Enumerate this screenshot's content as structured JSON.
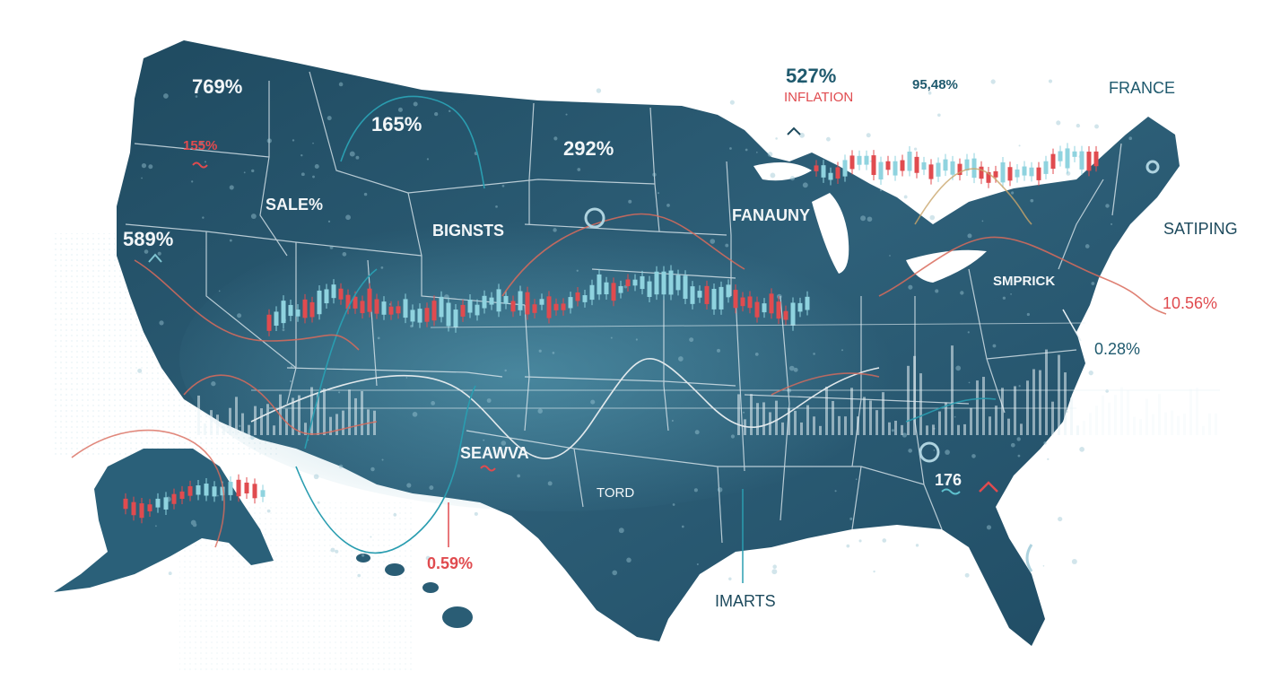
{
  "colors": {
    "map_fill": "#2c5b74",
    "map_fill_dark": "#1c4257",
    "border": "#dce8ee",
    "candle_up": "#8fd3df",
    "candle_down": "#e04b4f",
    "accent_red": "#e04b4f",
    "accent_teal": "#2a9db0"
  },
  "labels": {
    "oregon_pct": "769%",
    "montana_pct": "165%",
    "dakota_pct": "292%",
    "inflation_pct": "527%",
    "inflation": "INFLATION",
    "top_pct": "95,48%",
    "france": "FRANCE",
    "oregon_red_pct": "155%",
    "idaho_label": "SALE%",
    "california_pct": "589%",
    "bignsts": "BIGNSTS",
    "fanauny": "FANAUNY",
    "satiping": "SATIPING",
    "smprick": "SMPRICK",
    "northeast_red_pct": "10.56%",
    "east_pct": "0.28%",
    "seawva": "SEAWVA",
    "tord": "TORD",
    "southeast_num": "176",
    "gulf_red_pct": "0.59%",
    "imarts": "IMARTS"
  },
  "icons": [
    "up-chevron-icon",
    "wave-icon",
    "circle-icon",
    "anchor-icon"
  ]
}
